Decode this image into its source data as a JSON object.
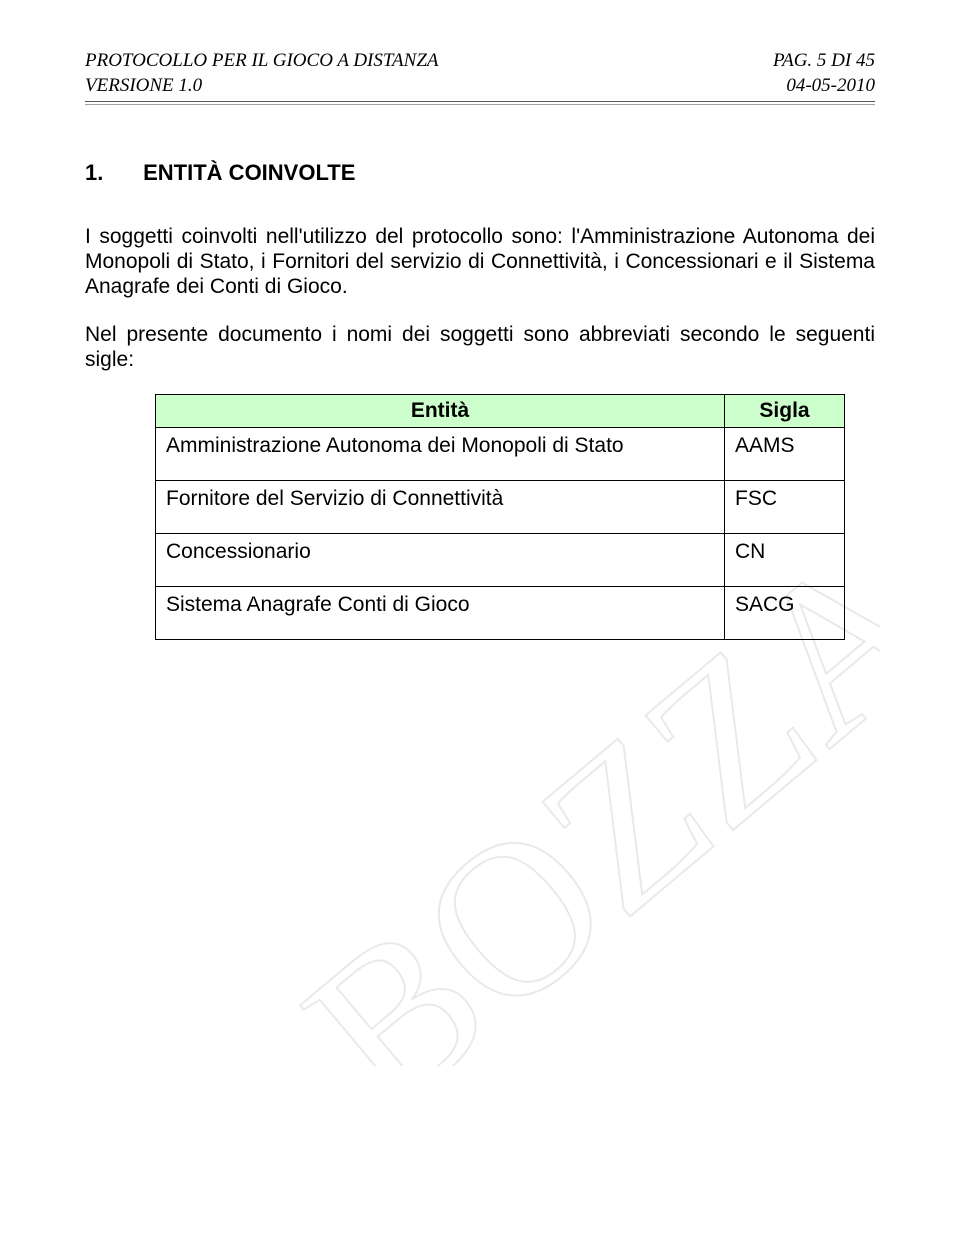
{
  "header": {
    "doc_title": "PROTOCOLLO PER IL GIOCO A DISTANZA",
    "version_label": "VERSIONE 1.0",
    "page_label": "PAG. 5 DI 45",
    "date": "04-05-2010"
  },
  "section": {
    "number": "1.",
    "title": "ENTITÀ COINVOLTE"
  },
  "paragraphs": {
    "p1": "I soggetti coinvolti nell'utilizzo del protocollo sono: l'Amministrazione Autonoma dei Monopoli di Stato, i Fornitori del servizio di Connettività, i Concessionari e il Sistema Anagrafe dei Conti di Gioco.",
    "p2": "Nel presente documento i nomi dei soggetti sono abbreviati secondo le seguenti sigle:"
  },
  "table": {
    "columns": [
      "Entità",
      "Sigla"
    ],
    "header_bg": "#cdffcd",
    "border_color": "#000000",
    "col_widths": [
      "auto",
      "120px"
    ],
    "rows": [
      [
        "Amministrazione Autonoma dei Monopoli di Stato",
        "AAMS"
      ],
      [
        "Fornitore del Servizio di Connettività",
        "FSC"
      ],
      [
        "Concessionario",
        "CN"
      ],
      [
        "Sistema Anagrafe Conti di Gioco",
        "SACG"
      ]
    ]
  },
  "watermark": {
    "text": "BOZZA",
    "color": "#e0e0e0",
    "fontsize": 220,
    "opacity": 0.5
  },
  "colors": {
    "text": "#000000",
    "background": "#ffffff",
    "rule": "#555555"
  },
  "typography": {
    "header_font": "Times New Roman, italic",
    "header_fontsize": 19,
    "body_font": "Arial",
    "body_fontsize": 21,
    "heading_fontsize": 22,
    "heading_weight": "bold"
  }
}
